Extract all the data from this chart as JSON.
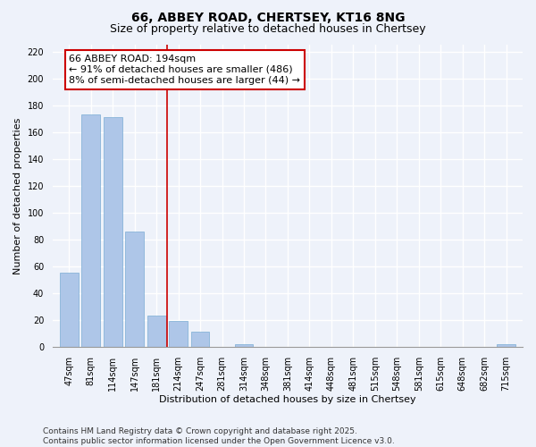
{
  "title": "66, ABBEY ROAD, CHERTSEY, KT16 8NG",
  "subtitle": "Size of property relative to detached houses in Chertsey",
  "xlabel": "Distribution of detached houses by size in Chertsey",
  "ylabel": "Number of detached properties",
  "bar_labels": [
    "47sqm",
    "81sqm",
    "114sqm",
    "147sqm",
    "181sqm",
    "214sqm",
    "247sqm",
    "281sqm",
    "314sqm",
    "348sqm",
    "381sqm",
    "414sqm",
    "448sqm",
    "481sqm",
    "515sqm",
    "548sqm",
    "581sqm",
    "615sqm",
    "648sqm",
    "682sqm",
    "715sqm"
  ],
  "bar_values": [
    55,
    173,
    171,
    86,
    23,
    19,
    11,
    0,
    2,
    0,
    0,
    0,
    0,
    0,
    0,
    0,
    0,
    0,
    0,
    0,
    2
  ],
  "bar_color": "#aec6e8",
  "bar_edge_color": "#7badd4",
  "vline_x": 4.5,
  "vline_color": "#cc0000",
  "annotation_text_line1": "66 ABBEY ROAD: 194sqm",
  "annotation_text_line2": "← 91% of detached houses are smaller (486)",
  "annotation_text_line3": "8% of semi-detached houses are larger (44) →",
  "ylim": [
    0,
    225
  ],
  "yticks": [
    0,
    20,
    40,
    60,
    80,
    100,
    120,
    140,
    160,
    180,
    200,
    220
  ],
  "footnote_line1": "Contains HM Land Registry data © Crown copyright and database right 2025.",
  "footnote_line2": "Contains public sector information licensed under the Open Government Licence v3.0.",
  "bg_color": "#eef2fa",
  "grid_color": "#ffffff",
  "title_fontsize": 10,
  "subtitle_fontsize": 9,
  "axis_label_fontsize": 8,
  "tick_fontsize": 7,
  "annotation_fontsize": 8,
  "footnote_fontsize": 6.5
}
